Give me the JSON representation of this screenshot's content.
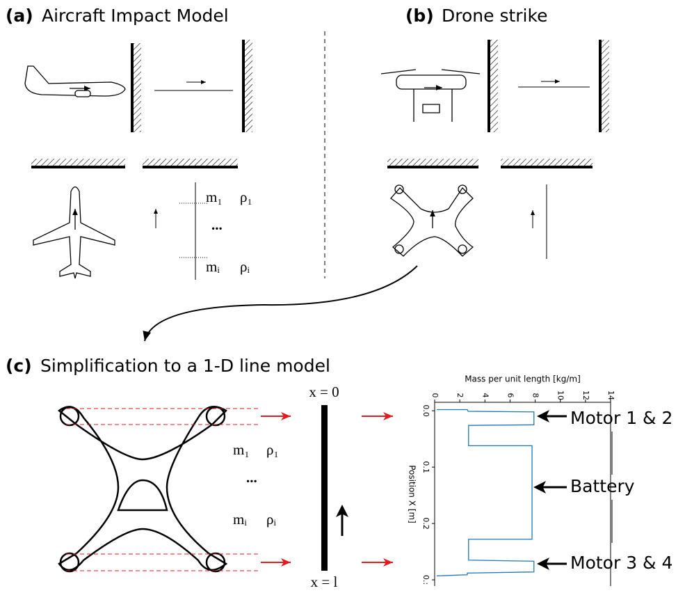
{
  "panels": {
    "a": {
      "label": "(a)",
      "title": "Aircraft Impact Model",
      "m1": "m₁",
      "rho1": "ρ₁",
      "dots": "...",
      "mi": "mᵢ",
      "rhoi": "ρᵢ"
    },
    "b": {
      "label": "(b)",
      "title": "Drone strike"
    },
    "c": {
      "label": "(c)",
      "title": "Simplification to a 1-D line model",
      "m1": "m₁",
      "rho1": "ρ₁",
      "dots": "...",
      "mi": "mᵢ",
      "rhoi": "ρᵢ",
      "x_top": "x = 0",
      "x_bottom": "x = l"
    }
  },
  "chart_data": {
    "type": "line",
    "x_label": "Mass per unit length [kg/m]",
    "y_label": "Position X [m]",
    "x": [
      0.17,
      2.6,
      2.66,
      7.9,
      7.9,
      2.7,
      2.7,
      7.75,
      7.75,
      2.7,
      2.7,
      7.9,
      7.9,
      2.6,
      2.6,
      0.17
    ],
    "values": [
      -0.002,
      -0.002,
      0.001,
      0.002,
      0.025,
      0.026,
      0.062,
      0.062,
      0.228,
      0.228,
      0.265,
      0.267,
      0.286,
      0.288,
      0.291,
      0.293
    ],
    "color": "#1f77b4",
    "xlim": [
      0,
      14
    ],
    "xticks": [
      0,
      2,
      4,
      6,
      8,
      10,
      12,
      14
    ],
    "ylim": [
      -0.015,
      0.311
    ],
    "y_inverted": true,
    "yticks": [
      {
        "value": 0,
        "label": "0.0"
      },
      0.1,
      0.2,
      {
        "value": 0.3,
        "label": "0.:"
      }
    ],
    "annotations": [
      "Motor 1 & 2",
      "Battery",
      "Motor 3 & 4"
    ]
  }
}
